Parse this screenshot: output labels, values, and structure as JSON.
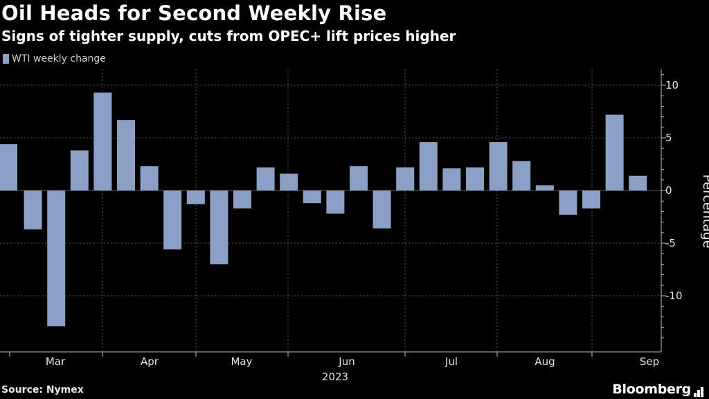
{
  "header": {
    "title": "Oil Heads for Second Weekly Rise",
    "subtitle": "Signs of tighter supply, cuts from OPEC+ lift prices higher"
  },
  "footer": {
    "source": "Source: Nymex",
    "brand": "Bloomberg"
  },
  "colors": {
    "background": "#000000",
    "bar": "#8aa0c4",
    "grid": "#5a5a5a"
  },
  "chart_data": {
    "type": "bar",
    "legend": "WTI weekly change",
    "legend_position": "top-left",
    "ylabel": "Percentage",
    "xlabel": "2023",
    "ylim": [
      -14.8,
      11.5
    ],
    "y_ticks": [
      10,
      5,
      0,
      -5,
      -10
    ],
    "y_tick_labels": [
      "10",
      "5",
      "0",
      "-5",
      "-10"
    ],
    "grid": true,
    "month_labels": [
      "Mar",
      "Apr",
      "May",
      "Jun",
      "Jul",
      "Aug",
      "Sep"
    ],
    "values": [
      4.4,
      -3.7,
      -12.9,
      3.8,
      9.3,
      6.7,
      2.3,
      -5.6,
      -1.3,
      -7.0,
      -1.7,
      2.2,
      1.6,
      -1.2,
      -2.2,
      2.3,
      -3.6,
      2.2,
      4.6,
      2.1,
      2.2,
      4.6,
      2.8,
      0.5,
      -2.3,
      -1.7,
      7.2,
      1.4
    ]
  }
}
